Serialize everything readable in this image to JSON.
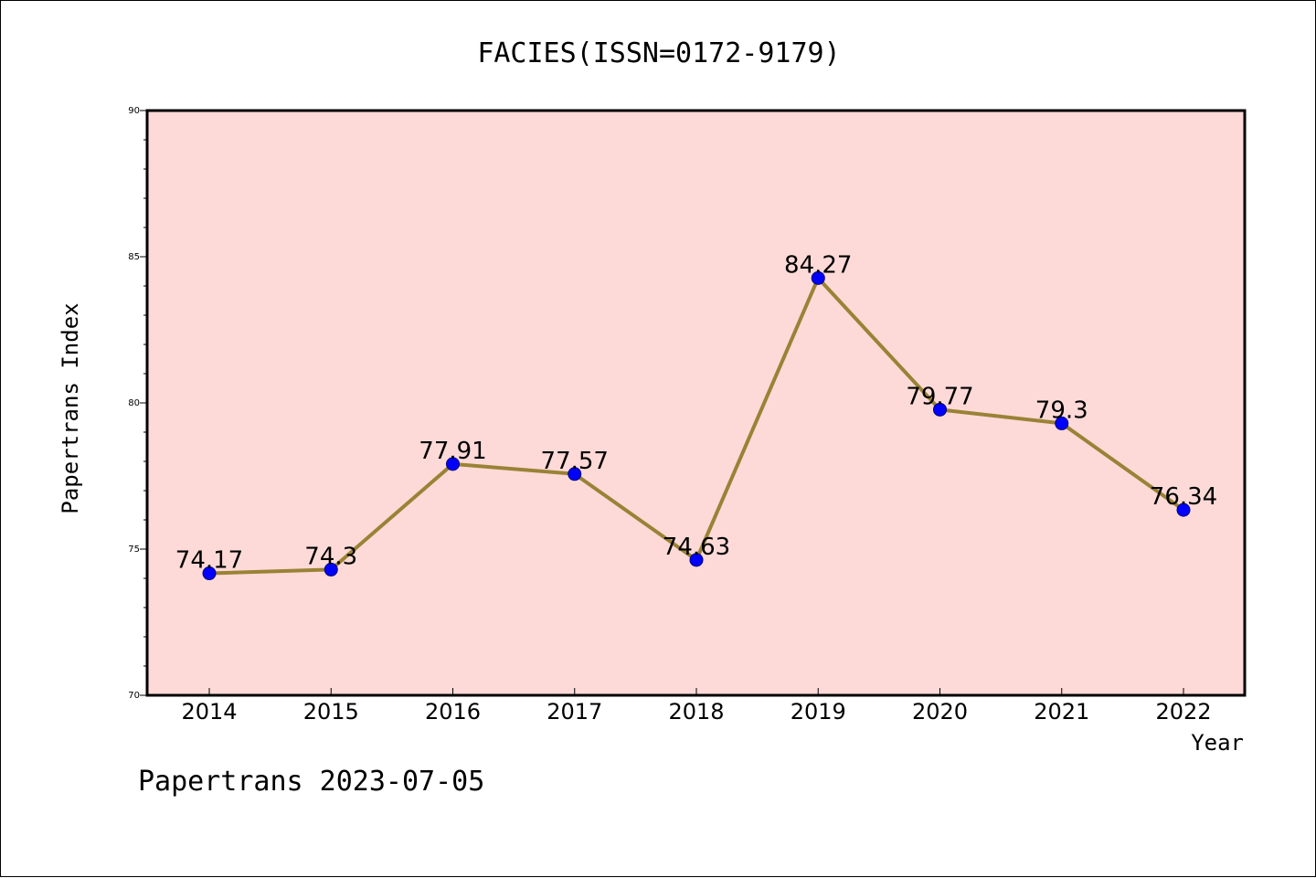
{
  "footer": "Papertrans 2023-07-05",
  "colors": {
    "plot_background": "#fddad7",
    "line": "#9a8236",
    "marker": "#0000ff",
    "axis": "#000000"
  },
  "chart_data": {
    "type": "line",
    "title": "FACIES(ISSN=0172-9179)",
    "xlabel": "Year",
    "ylabel": "Papertrans Index",
    "categories": [
      "2014",
      "2015",
      "2016",
      "2017",
      "2018",
      "2019",
      "2020",
      "2021",
      "2022"
    ],
    "series": [
      {
        "values": [
          74.17,
          74.3,
          77.91,
          77.57,
          74.63,
          84.27,
          79.77,
          79.3,
          76.34
        ],
        "labels": [
          "74.17",
          "74.3",
          "77.91",
          "77.57",
          "74.63",
          "84.27",
          "79.77",
          "79.3",
          "76.34"
        ]
      }
    ],
    "ylim": [
      70,
      90
    ],
    "yticks": [
      "70",
      "75",
      "80",
      "85",
      "90"
    ],
    "grid": false,
    "legend": "none"
  }
}
